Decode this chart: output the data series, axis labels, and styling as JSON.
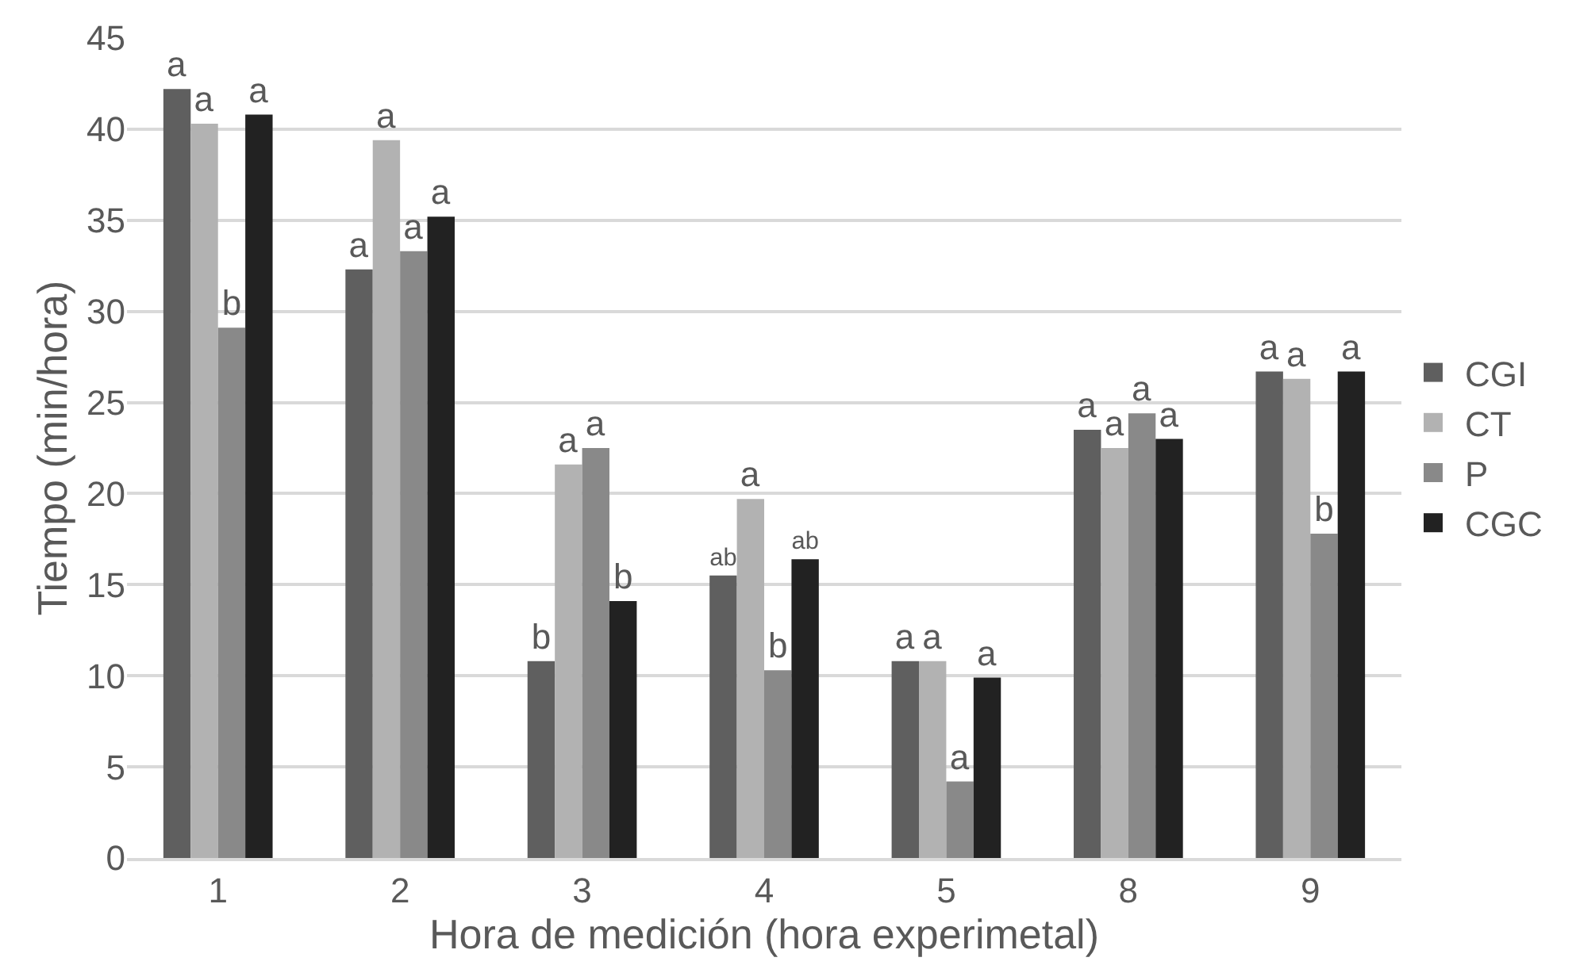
{
  "chart_data": {
    "type": "bar",
    "xlabel": "Hora de medición (hora experimetal)",
    "ylabel": "Tiempo (min/hora)",
    "categories": [
      "1",
      "2",
      "3",
      "4",
      "5",
      "8",
      "9"
    ],
    "series": [
      {
        "name": "CGI",
        "color": "#5f5f5f",
        "values": [
          42.2,
          32.3,
          10.8,
          15.5,
          10.8,
          23.5,
          26.7
        ],
        "value_labels": [
          "a",
          "a",
          "b",
          "ab",
          "a",
          "a",
          "a"
        ]
      },
      {
        "name": "CT",
        "color": "#b2b2b2",
        "values": [
          40.3,
          39.4,
          21.6,
          19.7,
          10.8,
          22.5,
          26.3
        ],
        "value_labels": [
          "a",
          "a",
          "a",
          "a",
          "a",
          "a",
          "a"
        ]
      },
      {
        "name": "P",
        "color": "#898989",
        "values": [
          29.1,
          33.3,
          22.5,
          10.3,
          4.2,
          24.4,
          17.8
        ],
        "value_labels": [
          "b",
          "a",
          "a",
          "b",
          "a",
          "a",
          "b"
        ]
      },
      {
        "name": "CGC",
        "color": "#222222",
        "values": [
          40.8,
          35.2,
          14.1,
          16.4,
          9.9,
          23.0,
          26.7
        ],
        "value_labels": [
          "a",
          "a",
          "b",
          "ab",
          "a",
          "a",
          "a"
        ]
      }
    ],
    "ylim": [
      0,
      45
    ],
    "yticks": [
      0,
      5,
      10,
      15,
      20,
      25,
      30,
      35,
      40,
      45
    ],
    "grid": "y",
    "legend": "right"
  }
}
